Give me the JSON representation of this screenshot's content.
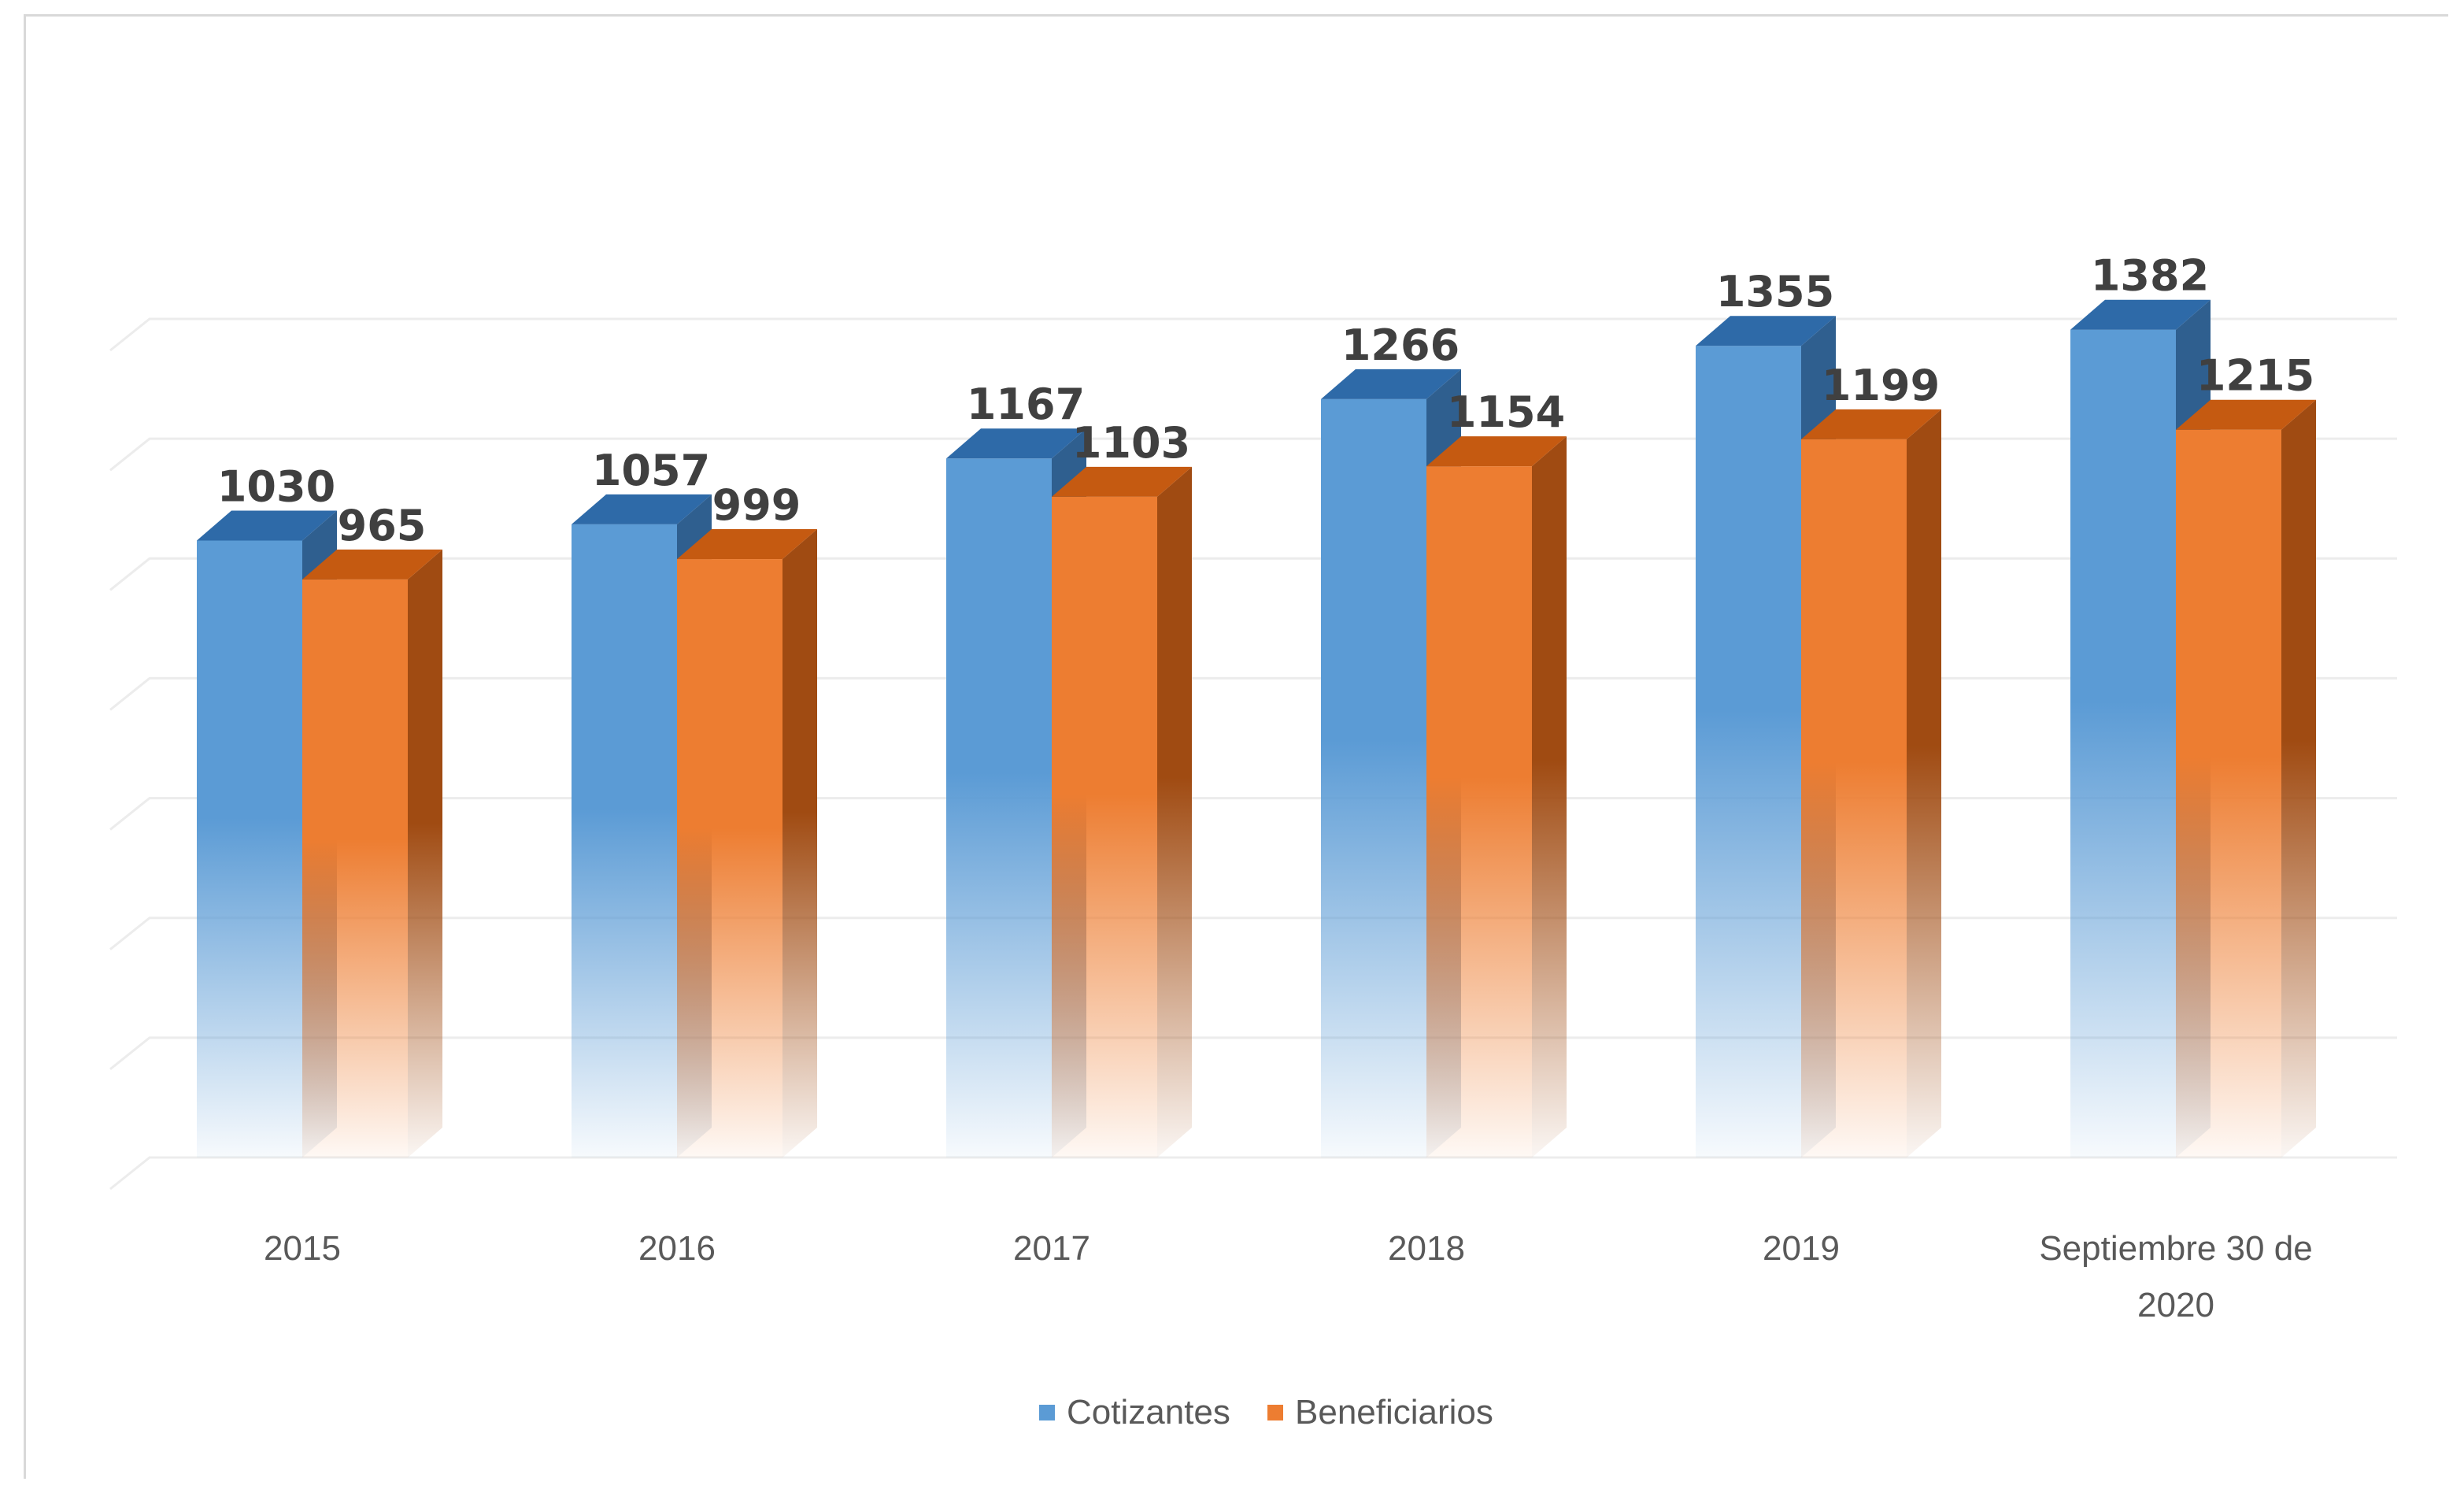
{
  "chart_data": {
    "type": "bar",
    "style": "3d-clustered-column",
    "categories": [
      "2015",
      "2016",
      "2017",
      "2018",
      "2019",
      "Septiembre 30 de 2020"
    ],
    "category_lines": [
      [
        "2015"
      ],
      [
        "2016"
      ],
      [
        "2017"
      ],
      [
        "2018"
      ],
      [
        "2019"
      ],
      [
        "Septiembre 30 de",
        "2020"
      ]
    ],
    "series": [
      {
        "name": "Cotizantes",
        "values": [
          1030,
          1057,
          1167,
          1266,
          1355,
          1382
        ],
        "color": "#5b9bd5",
        "top_color": "#2e6aa8",
        "side_color": "#2f5f8f"
      },
      {
        "name": "Beneficiarios",
        "values": [
          965,
          999,
          1103,
          1154,
          1199,
          1215
        ],
        "color": "#ed7d31",
        "top_color": "#c55a11",
        "side_color": "#a04b12"
      }
    ],
    "ylim": [
      0,
      1400
    ],
    "grid": true,
    "legend": "bottom",
    "value_labels": true
  }
}
